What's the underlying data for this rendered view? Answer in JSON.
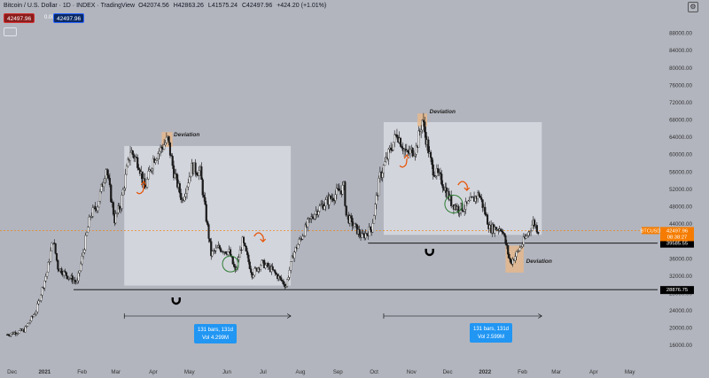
{
  "header": {
    "title": "Bitcoin / U.S. Dollar · 1D · INDEX · TradingView",
    "ohlc": [
      "O42074.56",
      "H42863.26",
      "L41575.24",
      "C42497.96",
      "+424.20 (+1.01%)"
    ],
    "bid": "42497.96",
    "spread": "0.00",
    "ask": "42497.96"
  },
  "colors": {
    "background": "#b2b5be",
    "candle_up": "#f2f2f2",
    "candle_down": "#1a1a1a",
    "box_fill": "#d8dbe3",
    "deviation_fill": "#e8b98a",
    "last_price_tag": "#f57c00",
    "measure_label": "#2196f3",
    "arrow": "#e65100"
  },
  "icons": [
    "settings-icon",
    "magnet-icon",
    "curved-arrow-icon",
    "circle-marker-icon"
  ],
  "chart_data": {
    "type": "candlestick",
    "symbol": "BTCUSD",
    "y_axis_ticks": [
      88000,
      84000,
      80000,
      76000,
      72000,
      68000,
      64000,
      60000,
      56000,
      52000,
      48000,
      44000,
      40000,
      36000,
      32000,
      28000,
      24000,
      20000,
      16000
    ],
    "ylim": [
      14000,
      92000
    ],
    "x_axis_ticks": [
      "Dec",
      "2021",
      "Feb",
      "Mar",
      "Apr",
      "May",
      "Jun",
      "Jul",
      "Aug",
      "Sep",
      "Oct",
      "Nov",
      "Dec",
      "2022",
      "Feb",
      "Mar",
      "Apr",
      "May"
    ],
    "series_close_path": [
      [
        "2020-12-01",
        18500
      ],
      [
        "2020-12-15",
        19500
      ],
      [
        "2020-12-25",
        24000
      ],
      [
        "2021-01-03",
        33000
      ],
      [
        "2021-01-08",
        40500
      ],
      [
        "2021-01-12",
        34000
      ],
      [
        "2021-01-20",
        32000
      ],
      [
        "2021-01-28",
        30500
      ],
      [
        "2021-02-08",
        46000
      ],
      [
        "2021-02-14",
        48500
      ],
      [
        "2021-02-21",
        57000
      ],
      [
        "2021-02-28",
        45000
      ],
      [
        "2021-03-05",
        48500
      ],
      [
        "2021-03-13",
        61000
      ],
      [
        "2021-03-20",
        58000
      ],
      [
        "2021-03-25",
        52000
      ],
      [
        "2021-04-01",
        59000
      ],
      [
        "2021-04-13",
        63500
      ],
      [
        "2021-04-18",
        56000
      ],
      [
        "2021-04-25",
        49500
      ],
      [
        "2021-05-03",
        57000
      ],
      [
        "2021-05-10",
        56000
      ],
      [
        "2021-05-13",
        49500
      ],
      [
        "2021-05-19",
        37000
      ],
      [
        "2021-05-25",
        38500
      ],
      [
        "2021-06-03",
        37500
      ],
      [
        "2021-06-08",
        33000
      ],
      [
        "2021-06-14",
        40000
      ],
      [
        "2021-06-22",
        32500
      ],
      [
        "2021-06-30",
        35000
      ],
      [
        "2021-07-08",
        33500
      ],
      [
        "2021-07-20",
        29800
      ],
      [
        "2021-07-26",
        37000
      ],
      [
        "2021-08-07",
        44000
      ],
      [
        "2021-08-14",
        47000
      ],
      [
        "2021-08-22",
        49000
      ],
      [
        "2021-09-06",
        52500
      ],
      [
        "2021-09-08",
        46000
      ],
      [
        "2021-09-21",
        41000
      ],
      [
        "2021-09-29",
        43000
      ],
      [
        "2021-10-06",
        55000
      ],
      [
        "2021-10-15",
        61500
      ],
      [
        "2021-10-20",
        65000
      ],
      [
        "2021-10-28",
        60000
      ],
      [
        "2021-11-05",
        61500
      ],
      [
        "2021-11-10",
        68000
      ],
      [
        "2021-11-18",
        57000
      ],
      [
        "2021-11-26",
        54000
      ],
      [
        "2021-12-04",
        49000
      ],
      [
        "2021-12-10",
        47500
      ],
      [
        "2021-12-16",
        48000
      ],
      [
        "2021-12-27",
        51000
      ],
      [
        "2022-01-05",
        43000
      ],
      [
        "2022-01-15",
        43000
      ],
      [
        "2022-01-22",
        35000
      ],
      [
        "2022-01-28",
        37500
      ],
      [
        "2022-02-05",
        41500
      ],
      [
        "2022-02-10",
        44500
      ],
      [
        "2022-02-14",
        42500
      ]
    ],
    "horizontal_lines": [
      {
        "value": 39585.55,
        "label": "39585.55"
      },
      {
        "value": 28876.75,
        "label": "28876.75"
      }
    ],
    "last_price": {
      "value": 42497.96,
      "symbol_tag": "BTCUSD",
      "price_label": "42497.96",
      "countdown": "08:38:27"
    },
    "annotations": [
      {
        "text": "Deviation",
        "near": "2021-04-14"
      },
      {
        "text": "Deviation",
        "near": "2021-11-10"
      },
      {
        "text": "Deviation",
        "near": "2022-01-25"
      }
    ],
    "measurements": [
      {
        "bars": "131 bars, 131d",
        "vol": "Vol 4.299M"
      },
      {
        "bars": "131 bars, 131d",
        "vol": "Vol 2.599M"
      }
    ],
    "grid": false
  }
}
